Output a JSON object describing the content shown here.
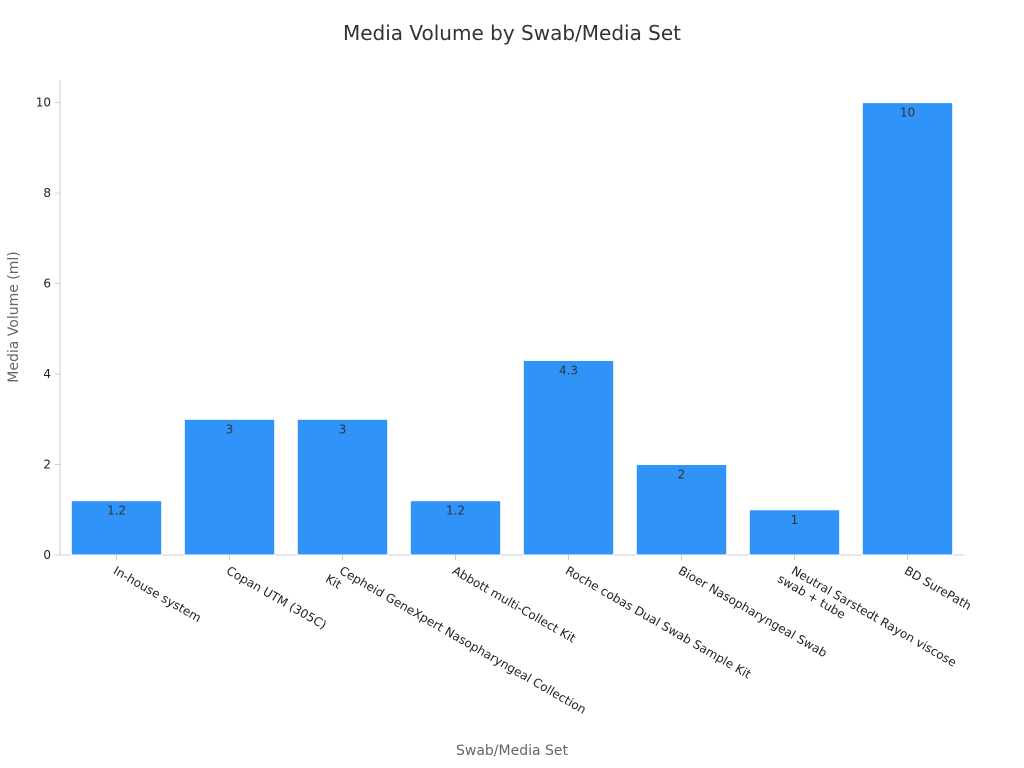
{
  "chart_data": {
    "type": "bar",
    "title": "Media Volume by Swab/Media Set",
    "xlabel": "Swab/Media Set",
    "ylabel": "Media Volume (ml)",
    "categories": [
      "In-house system",
      "Copan UTM (305C)",
      "Cepheid GeneXpert Nasopharyngeal Collection Kit",
      "Abbott multi-Collect Kit",
      "Roche cobas Dual Swab Sample Kit",
      "Bioer Nasopharyngeal Swab",
      "Neutral Sarstedt Rayon viscose swab + tube",
      "BD SurePath"
    ],
    "category_lines": [
      [
        "In-house system"
      ],
      [
        "Copan UTM (305C)"
      ],
      [
        "Cepheid GeneXpert Nasopharyngeal Collection",
        "Kit"
      ],
      [
        "Abbott multi-Collect Kit"
      ],
      [
        "Roche cobas Dual Swab Sample Kit"
      ],
      [
        "Bioer Nasopharyngeal Swab"
      ],
      [
        "Neutral Sarstedt Rayon viscose",
        "swab + tube"
      ],
      [
        "BD SurePath"
      ]
    ],
    "values": [
      1.2,
      3,
      3,
      1.2,
      4.3,
      2,
      1,
      10
    ],
    "value_labels": [
      "1.2",
      "3",
      "3",
      "1.2",
      "4.3",
      "2",
      "1",
      "10"
    ],
    "ylim": [
      0,
      10.5
    ],
    "yticks": [
      0,
      2,
      4,
      6,
      8,
      10
    ],
    "ytick_labels": [
      "0",
      "2",
      "4",
      "6",
      "8",
      "10"
    ],
    "grid": false,
    "colors": {
      "bar": "#2f93f7",
      "bar_edge": "#ffffff",
      "axis": "#cccccc",
      "title": "#333333",
      "label": "#666666",
      "tick": "#222222",
      "value_label": "#333333"
    }
  }
}
